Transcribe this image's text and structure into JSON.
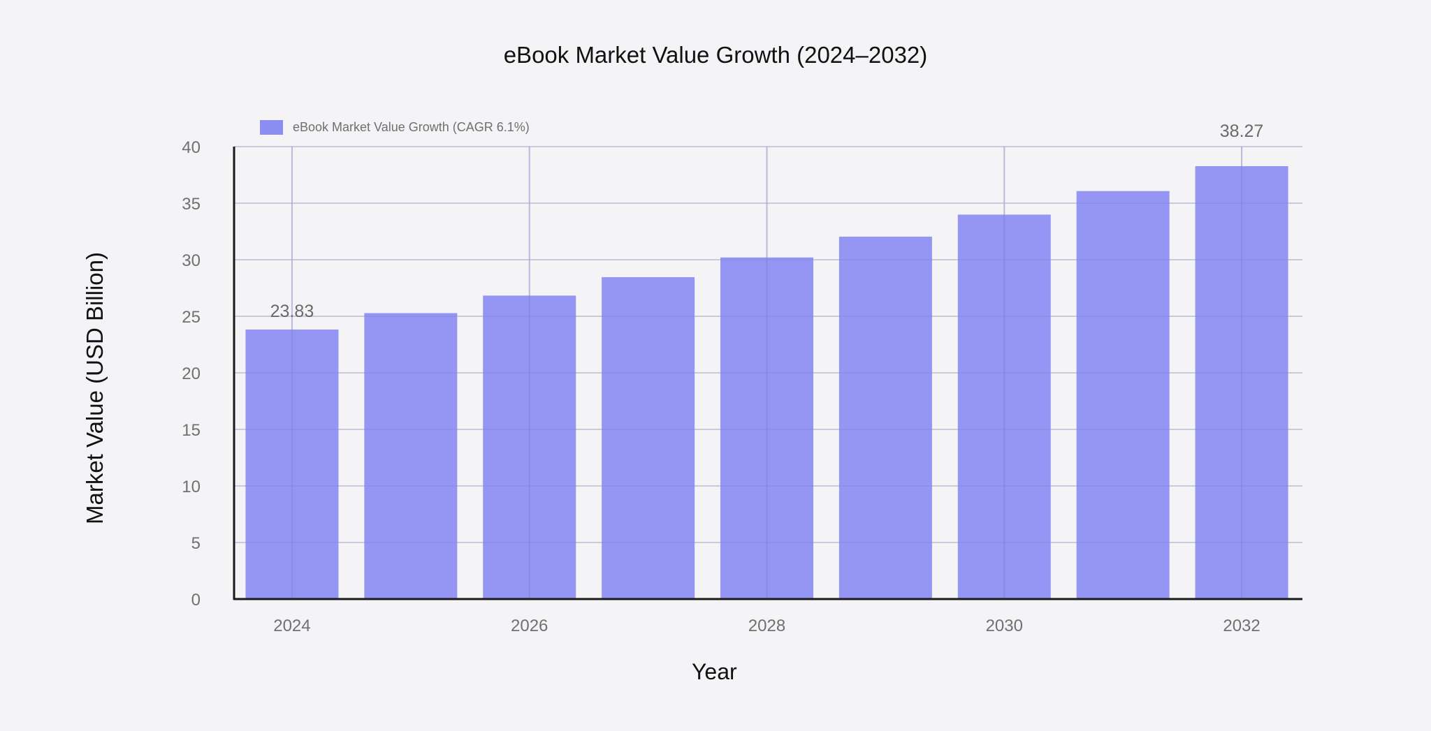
{
  "chart_data": {
    "type": "bar",
    "title": "eBook Market Value Growth (2024–2032)",
    "xlabel": "Year",
    "ylabel": "Market Value (USD Billion)",
    "categories": [
      "2024",
      "2025",
      "2026",
      "2027",
      "2028",
      "2029",
      "2030",
      "2031",
      "2032"
    ],
    "series": [
      {
        "name": "eBook Market Value Growth (CAGR 6.1%)",
        "values": [
          23.83,
          25.28,
          26.83,
          28.46,
          30.2,
          32.04,
          33.99,
          36.07,
          38.27
        ],
        "color": "#8c8df2"
      }
    ],
    "data_labels": [
      {
        "category": "2024",
        "text": "23.83"
      },
      {
        "category": "2032",
        "text": "38.27"
      }
    ],
    "ylim": [
      0,
      40
    ],
    "yticks": [
      0,
      5,
      10,
      15,
      20,
      25,
      30,
      35,
      40
    ],
    "xticks": [
      "2024",
      "2026",
      "2028",
      "2030",
      "2032"
    ],
    "grid": true,
    "legend_position": "top-left"
  },
  "colors": {
    "background": "#f4f4f7",
    "bar": "#8c8df2",
    "grid": "#dcdcdf",
    "axis": "#1a1a1a",
    "tick_text": "#707070"
  }
}
